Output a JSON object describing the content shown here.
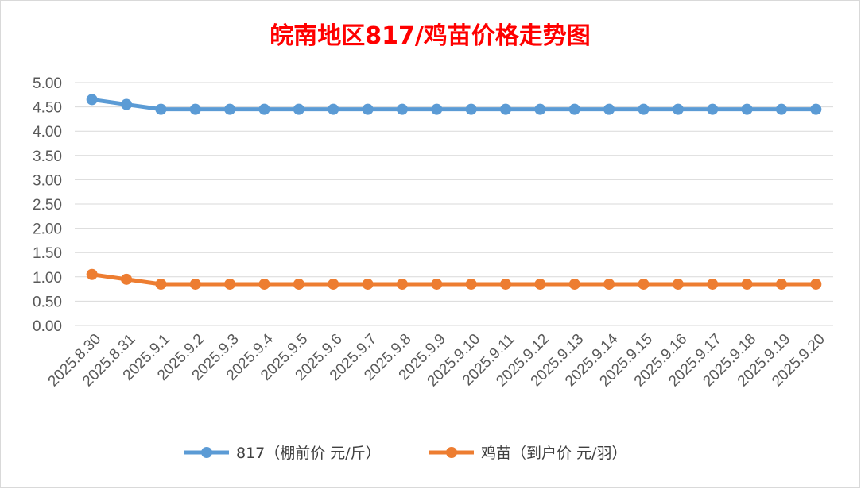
{
  "chart_data": {
    "type": "line",
    "title": "皖南地区817/鸡苗价格走势图",
    "xlabel": "",
    "ylabel": "",
    "ylim": [
      0,
      5
    ],
    "y_ticks": [
      "0.00",
      "0.50",
      "1.00",
      "1.50",
      "2.00",
      "2.50",
      "3.00",
      "3.50",
      "4.00",
      "4.50",
      "5.00"
    ],
    "grid": true,
    "legend_position": "bottom",
    "categories": [
      "2025.8.30",
      "2025.8.31",
      "2025.9.1",
      "2025.9.2",
      "2025.9.3",
      "2025.9.4",
      "2025.9.5",
      "2025.9.6",
      "2025.9.7",
      "2025.9.8",
      "2025.9.9",
      "2025.9.10",
      "2025.9.11",
      "2025.9.12",
      "2025.9.13",
      "2025.9.14",
      "2025.9.15",
      "2025.9.16",
      "2025.9.17",
      "2025.9.18",
      "2025.9.19",
      "2025.9.20"
    ],
    "series": [
      {
        "name": "817（棚前价 元/斤）",
        "color": "#5b9bd5",
        "values": [
          4.65,
          4.55,
          4.45,
          4.45,
          4.45,
          4.45,
          4.45,
          4.45,
          4.45,
          4.45,
          4.45,
          4.45,
          4.45,
          4.45,
          4.45,
          4.45,
          4.45,
          4.45,
          4.45,
          4.45,
          4.45,
          4.45
        ]
      },
      {
        "name": "鸡苗（到户价 元/羽）",
        "color": "#ed7d31",
        "values": [
          1.05,
          0.95,
          0.85,
          0.85,
          0.85,
          0.85,
          0.85,
          0.85,
          0.85,
          0.85,
          0.85,
          0.85,
          0.85,
          0.85,
          0.85,
          0.85,
          0.85,
          0.85,
          0.85,
          0.85,
          0.85,
          0.85
        ]
      }
    ]
  }
}
